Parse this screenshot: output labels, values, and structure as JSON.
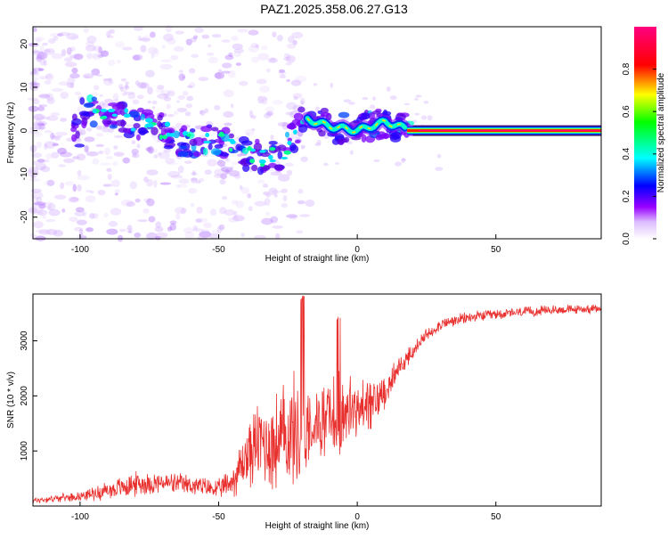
{
  "title": "PAZ1.2025.358.06.27.G13",
  "chart_data": [
    {
      "type": "heatmap",
      "xlabel": "Height of straight line (km)",
      "ylabel": "Frequency (Hz)",
      "xlim": [
        -117,
        88
      ],
      "ylim": [
        -25,
        24
      ],
      "xticks": [
        -100,
        -50,
        0,
        50
      ],
      "xtick_labels": [
        "-100",
        "-50",
        "0",
        "50"
      ],
      "yticks": [
        -20,
        -10,
        0,
        10,
        20
      ],
      "ytick_labels": [
        "-20",
        "-10",
        "0",
        "10",
        "20"
      ],
      "colorbar": {
        "label": "Normalized spectral amplitude",
        "range": [
          0,
          1
        ],
        "ticks": [
          0.0,
          0.2,
          0.4,
          0.6,
          0.8
        ],
        "tick_labels": [
          "0.0",
          "0.2",
          "0.4",
          "0.6",
          "0.8"
        ],
        "colors": [
          "#ffffff",
          "#9900ff",
          "#0000ff",
          "#00ffff",
          "#00ff00",
          "#ffff00",
          "#ff0000",
          "#ff00ff"
        ]
      },
      "ridge": {
        "description_points_x": [
          -100,
          -90,
          -80,
          -70,
          -60,
          -50,
          -40,
          -30,
          -25,
          -20,
          -10,
          0,
          10,
          20,
          50,
          88
        ],
        "description_points_y": [
          4,
          4,
          2,
          0,
          -3,
          -2,
          -6,
          -6,
          -4,
          3,
          1,
          0,
          2,
          0,
          0,
          0
        ]
      }
    },
    {
      "type": "line",
      "xlabel": "Height of straight line (km)",
      "ylabel": "SNR (10 * v/v)",
      "xlim": [
        -117,
        88
      ],
      "ylim": [
        0,
        3850
      ],
      "xticks": [
        -100,
        -50,
        0,
        50
      ],
      "xtick_labels": [
        "-100",
        "-50",
        "0",
        "50"
      ],
      "yticks": [
        1000,
        2000,
        3000
      ],
      "ytick_labels": [
        "1000",
        "2000",
        "3000"
      ],
      "color": "#e8312f",
      "envelope_x": [
        -117,
        -100,
        -90,
        -80,
        -70,
        -60,
        -50,
        -45,
        -40,
        -35,
        -30,
        -25,
        -20,
        -15,
        -10,
        -5,
        0,
        5,
        10,
        15,
        20,
        25,
        30,
        40,
        50,
        60,
        70,
        88
      ],
      "envelope_mid": [
        100,
        180,
        280,
        400,
        420,
        380,
        300,
        450,
        900,
        1200,
        1100,
        1300,
        1400,
        1500,
        1600,
        1700,
        1750,
        1800,
        2100,
        2500,
        2800,
        3100,
        3300,
        3420,
        3480,
        3520,
        3560,
        3580
      ],
      "envelope_amp": [
        70,
        90,
        200,
        260,
        220,
        220,
        200,
        350,
        700,
        900,
        1100,
        1200,
        1200,
        700,
        800,
        900,
        700,
        600,
        350,
        250,
        180,
        150,
        130,
        120,
        110,
        110,
        100,
        90
      ]
    }
  ]
}
